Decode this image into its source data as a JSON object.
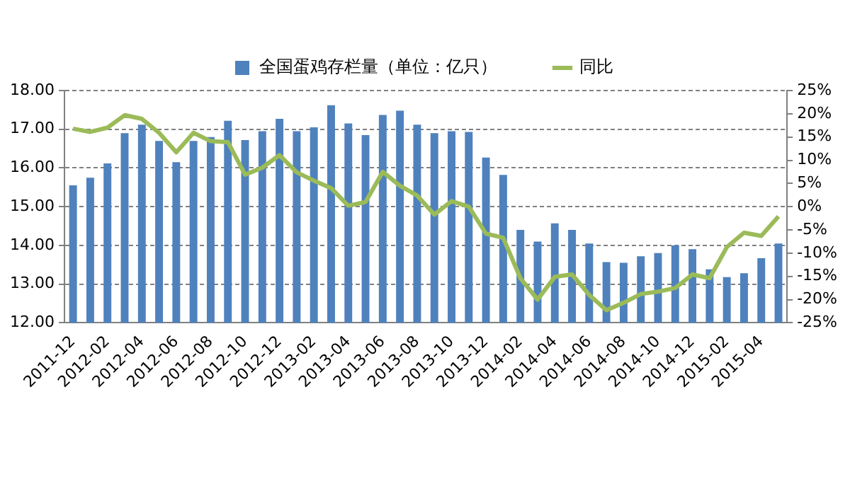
{
  "chart_data": {
    "type": "bar",
    "categories": [
      "2011-12",
      null,
      "2012-02",
      null,
      "2012-04",
      null,
      "2012-06",
      null,
      "2012-08",
      null,
      "2012-10",
      null,
      "2012-12",
      null,
      "2013-02",
      null,
      "2013-04",
      null,
      "2013-06",
      null,
      "2013-08",
      null,
      "2013-10",
      null,
      "2013-12",
      null,
      "2014-02",
      null,
      "2014-04",
      null,
      "2014-06",
      null,
      "2014-08",
      null,
      "2014-10",
      null,
      "2014-12",
      null,
      "2015-02",
      null,
      "2015-04",
      null
    ],
    "series": [
      {
        "name": "全国蛋鸡存栏量（单位：亿只）",
        "color": "#4f81bd",
        "values": [
          15.55,
          15.75,
          16.12,
          16.9,
          17.12,
          16.7,
          16.15,
          16.7,
          16.8,
          17.22,
          16.72,
          16.95,
          17.27,
          16.95,
          17.05,
          17.62,
          17.15,
          16.85,
          17.37,
          17.48,
          17.12,
          16.9,
          16.95,
          16.93,
          16.27,
          15.82,
          14.4,
          14.1,
          14.57,
          14.4,
          14.05,
          13.57,
          13.55,
          13.72,
          13.8,
          14.0,
          13.9,
          13.38,
          13.18,
          13.28,
          13.67,
          14.05
        ]
      },
      {
        "name": "同比",
        "type": "line",
        "axis": "y2",
        "color": "#9bbb59",
        "values": [
          16.8,
          16.1,
          17.0,
          19.7,
          18.9,
          15.9,
          11.7,
          15.9,
          14.1,
          13.9,
          6.9,
          8.4,
          11.1,
          7.4,
          5.6,
          4.0,
          0.2,
          1.0,
          7.5,
          4.5,
          2.4,
          -1.7,
          1.2,
          0.0,
          -5.8,
          -6.7,
          -15.4,
          -20.0,
          -15.1,
          -14.6,
          -19.0,
          -22.3,
          -20.7,
          -18.8,
          -18.3,
          -17.5,
          -14.6,
          -15.4,
          -8.7,
          -5.6,
          -6.3,
          -2.1
        ]
      }
    ],
    "ylim": [
      12,
      18
    ],
    "yticks": [
      {
        "value": 12,
        "label": "12.00"
      },
      {
        "value": 13,
        "label": "13.00"
      },
      {
        "value": 14,
        "label": "14.00"
      },
      {
        "value": 15,
        "label": "15.00"
      },
      {
        "value": 16,
        "label": "16.00"
      },
      {
        "value": 17,
        "label": "17.00"
      },
      {
        "value": 18,
        "label": "18.00"
      }
    ],
    "y2lim": [
      -25,
      25
    ],
    "y2ticks": [
      {
        "value": -25,
        "label": "-25%"
      },
      {
        "value": -20,
        "label": "-20%"
      },
      {
        "value": -15,
        "label": "-15%"
      },
      {
        "value": -10,
        "label": "-10%"
      },
      {
        "value": -5,
        "label": "-5%"
      },
      {
        "value": 0,
        "label": "0%"
      },
      {
        "value": 5,
        "label": "5%"
      },
      {
        "value": 10,
        "label": "10%"
      },
      {
        "value": 15,
        "label": "15%"
      },
      {
        "value": 20,
        "label": "20%"
      },
      {
        "value": 25,
        "label": "25%"
      }
    ],
    "grid": "y",
    "legend": "top",
    "marker": "none",
    "line_style": "solid"
  }
}
